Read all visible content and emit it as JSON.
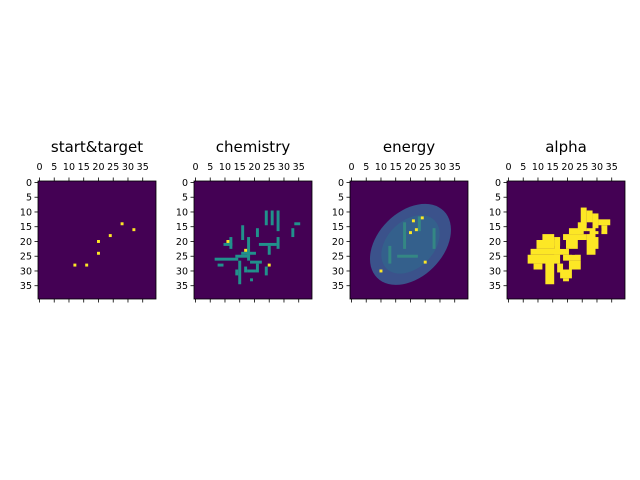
{
  "chart_data": {
    "type": "heatmap",
    "grid_shape": [
      40,
      40
    ],
    "colormap": "viridis",
    "palette": {
      "background": "#440154",
      "level_mid": "#21918c",
      "level_hot": "#fde725",
      "energy_low": "#3b528b",
      "energy_mid": "#2c728e",
      "energy_high": "#35b779"
    },
    "x_ticks": [
      0,
      5,
      10,
      15,
      20,
      25,
      30,
      35
    ],
    "y_ticks": [
      0,
      5,
      10,
      15,
      20,
      25,
      30,
      35
    ],
    "x_tick_labels": [
      "0",
      "5",
      "10",
      "15",
      "20",
      "25",
      "30",
      "35"
    ],
    "y_tick_labels": [
      "0",
      "5",
      "10",
      "15",
      "20",
      "25",
      "30",
      "35"
    ],
    "panels": [
      {
        "title": "start&target",
        "points": [
          [
            28,
            14
          ],
          [
            32,
            16
          ],
          [
            24,
            18
          ],
          [
            20,
            20
          ],
          [
            20,
            24
          ],
          [
            12,
            28
          ],
          [
            16,
            28
          ]
        ]
      },
      {
        "title": "chemistry",
        "segments_mid": [
          [
            24,
            10,
            24,
            14
          ],
          [
            26,
            10,
            26,
            14
          ],
          [
            28,
            10,
            28,
            16
          ],
          [
            34,
            14,
            35,
            14
          ],
          [
            33,
            16,
            33,
            18
          ],
          [
            21,
            16,
            21,
            18
          ],
          [
            16,
            15,
            16,
            19
          ],
          [
            10,
            21,
            12,
            21
          ],
          [
            12,
            19,
            12,
            22
          ],
          [
            18,
            19,
            18,
            26
          ],
          [
            22,
            21,
            27,
            21
          ],
          [
            28,
            19,
            28,
            22
          ],
          [
            25,
            22,
            25,
            24
          ],
          [
            16,
            24,
            20,
            24
          ],
          [
            14,
            25,
            18,
            25
          ],
          [
            7,
            26,
            14,
            26
          ],
          [
            8,
            28,
            9,
            28
          ],
          [
            15,
            27,
            15,
            34
          ],
          [
            19,
            27,
            22,
            27
          ],
          [
            21,
            28,
            21,
            30
          ],
          [
            24,
            29,
            24,
            31
          ],
          [
            17,
            29,
            17,
            30
          ],
          [
            18,
            30,
            20,
            30
          ],
          [
            19,
            33,
            19,
            33
          ],
          [
            14,
            30,
            14,
            31
          ]
        ],
        "points_hot": [
          [
            11,
            20
          ],
          [
            17,
            23
          ],
          [
            25,
            28
          ]
        ]
      },
      {
        "title": "energy",
        "blob": {
          "cx": 20,
          "cy": 21,
          "rx": 11,
          "ry": 16,
          "rotation_deg": 45
        },
        "streaks": [
          [
            23,
            12,
            23,
            16
          ],
          [
            18,
            14,
            18,
            22
          ],
          [
            28,
            16,
            28,
            22
          ],
          [
            13,
            22,
            13,
            27
          ],
          [
            16,
            25,
            22,
            25
          ]
        ],
        "points_hot": [
          [
            21,
            13
          ],
          [
            24,
            12
          ],
          [
            20,
            17
          ],
          [
            22,
            16
          ],
          [
            25,
            27
          ],
          [
            10,
            30
          ]
        ]
      },
      {
        "title": "alpha",
        "fill_color": "#fde725",
        "rects": [
          [
            25,
            9,
            27,
            15
          ],
          [
            27,
            10,
            29,
            14
          ],
          [
            29,
            11,
            31,
            18
          ],
          [
            24,
            14,
            27,
            17
          ],
          [
            31,
            13,
            35,
            15
          ],
          [
            32,
            15,
            34,
            18
          ],
          [
            27,
            16,
            30,
            25
          ],
          [
            29,
            19,
            31,
            23
          ],
          [
            21,
            16,
            27,
            18
          ],
          [
            19,
            18,
            27,
            20
          ],
          [
            20,
            20,
            24,
            23
          ],
          [
            12,
            18,
            16,
            22
          ],
          [
            10,
            20,
            16,
            23
          ],
          [
            16,
            19,
            18,
            25
          ],
          [
            8,
            23,
            21,
            25
          ],
          [
            7,
            25,
            18,
            28
          ],
          [
            9,
            28,
            12,
            30
          ],
          [
            13,
            27,
            16,
            35
          ],
          [
            19,
            25,
            25,
            27
          ],
          [
            21,
            27,
            25,
            30
          ],
          [
            17,
            28,
            19,
            31
          ],
          [
            18,
            30,
            22,
            33
          ],
          [
            19,
            33,
            21,
            34
          ],
          [
            16,
            23,
            18,
            24
          ]
        ],
        "holes": [
          [
            26,
            17,
            28,
            18
          ],
          [
            18,
            22,
            20,
            23
          ],
          [
            22,
            24,
            23,
            25
          ],
          [
            30,
            16,
            32,
            17
          ]
        ]
      }
    ]
  }
}
